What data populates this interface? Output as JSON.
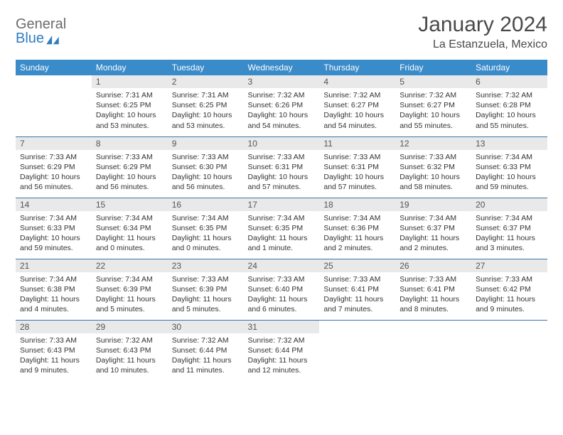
{
  "brand": {
    "line1": "General",
    "line2": "Blue"
  },
  "title": "January 2024",
  "location": "La Estanzuela, Mexico",
  "colors": {
    "header_bg": "#3a8bc9",
    "header_text": "#ffffff",
    "daynum_bg": "#e9e9e9",
    "row_border": "#3a75a8",
    "brand_blue": "#2f7ec0",
    "text": "#333333"
  },
  "weekdays": [
    "Sunday",
    "Monday",
    "Tuesday",
    "Wednesday",
    "Thursday",
    "Friday",
    "Saturday"
  ],
  "weeks": [
    [
      {
        "n": "",
        "sr": "",
        "ss": "",
        "dl": ""
      },
      {
        "n": "1",
        "sr": "7:31 AM",
        "ss": "6:25 PM",
        "dl": "10 hours and 53 minutes."
      },
      {
        "n": "2",
        "sr": "7:31 AM",
        "ss": "6:25 PM",
        "dl": "10 hours and 53 minutes."
      },
      {
        "n": "3",
        "sr": "7:32 AM",
        "ss": "6:26 PM",
        "dl": "10 hours and 54 minutes."
      },
      {
        "n": "4",
        "sr": "7:32 AM",
        "ss": "6:27 PM",
        "dl": "10 hours and 54 minutes."
      },
      {
        "n": "5",
        "sr": "7:32 AM",
        "ss": "6:27 PM",
        "dl": "10 hours and 55 minutes."
      },
      {
        "n": "6",
        "sr": "7:32 AM",
        "ss": "6:28 PM",
        "dl": "10 hours and 55 minutes."
      }
    ],
    [
      {
        "n": "7",
        "sr": "7:33 AM",
        "ss": "6:29 PM",
        "dl": "10 hours and 56 minutes."
      },
      {
        "n": "8",
        "sr": "7:33 AM",
        "ss": "6:29 PM",
        "dl": "10 hours and 56 minutes."
      },
      {
        "n": "9",
        "sr": "7:33 AM",
        "ss": "6:30 PM",
        "dl": "10 hours and 56 minutes."
      },
      {
        "n": "10",
        "sr": "7:33 AM",
        "ss": "6:31 PM",
        "dl": "10 hours and 57 minutes."
      },
      {
        "n": "11",
        "sr": "7:33 AM",
        "ss": "6:31 PM",
        "dl": "10 hours and 57 minutes."
      },
      {
        "n": "12",
        "sr": "7:33 AM",
        "ss": "6:32 PM",
        "dl": "10 hours and 58 minutes."
      },
      {
        "n": "13",
        "sr": "7:34 AM",
        "ss": "6:33 PM",
        "dl": "10 hours and 59 minutes."
      }
    ],
    [
      {
        "n": "14",
        "sr": "7:34 AM",
        "ss": "6:33 PM",
        "dl": "10 hours and 59 minutes."
      },
      {
        "n": "15",
        "sr": "7:34 AM",
        "ss": "6:34 PM",
        "dl": "11 hours and 0 minutes."
      },
      {
        "n": "16",
        "sr": "7:34 AM",
        "ss": "6:35 PM",
        "dl": "11 hours and 0 minutes."
      },
      {
        "n": "17",
        "sr": "7:34 AM",
        "ss": "6:35 PM",
        "dl": "11 hours and 1 minute."
      },
      {
        "n": "18",
        "sr": "7:34 AM",
        "ss": "6:36 PM",
        "dl": "11 hours and 2 minutes."
      },
      {
        "n": "19",
        "sr": "7:34 AM",
        "ss": "6:37 PM",
        "dl": "11 hours and 2 minutes."
      },
      {
        "n": "20",
        "sr": "7:34 AM",
        "ss": "6:37 PM",
        "dl": "11 hours and 3 minutes."
      }
    ],
    [
      {
        "n": "21",
        "sr": "7:34 AM",
        "ss": "6:38 PM",
        "dl": "11 hours and 4 minutes."
      },
      {
        "n": "22",
        "sr": "7:34 AM",
        "ss": "6:39 PM",
        "dl": "11 hours and 5 minutes."
      },
      {
        "n": "23",
        "sr": "7:33 AM",
        "ss": "6:39 PM",
        "dl": "11 hours and 5 minutes."
      },
      {
        "n": "24",
        "sr": "7:33 AM",
        "ss": "6:40 PM",
        "dl": "11 hours and 6 minutes."
      },
      {
        "n": "25",
        "sr": "7:33 AM",
        "ss": "6:41 PM",
        "dl": "11 hours and 7 minutes."
      },
      {
        "n": "26",
        "sr": "7:33 AM",
        "ss": "6:41 PM",
        "dl": "11 hours and 8 minutes."
      },
      {
        "n": "27",
        "sr": "7:33 AM",
        "ss": "6:42 PM",
        "dl": "11 hours and 9 minutes."
      }
    ],
    [
      {
        "n": "28",
        "sr": "7:33 AM",
        "ss": "6:43 PM",
        "dl": "11 hours and 9 minutes."
      },
      {
        "n": "29",
        "sr": "7:32 AM",
        "ss": "6:43 PM",
        "dl": "11 hours and 10 minutes."
      },
      {
        "n": "30",
        "sr": "7:32 AM",
        "ss": "6:44 PM",
        "dl": "11 hours and 11 minutes."
      },
      {
        "n": "31",
        "sr": "7:32 AM",
        "ss": "6:44 PM",
        "dl": "11 hours and 12 minutes."
      },
      {
        "n": "",
        "sr": "",
        "ss": "",
        "dl": ""
      },
      {
        "n": "",
        "sr": "",
        "ss": "",
        "dl": ""
      },
      {
        "n": "",
        "sr": "",
        "ss": "",
        "dl": ""
      }
    ]
  ],
  "labels": {
    "sunrise": "Sunrise: ",
    "sunset": "Sunset: ",
    "daylight": "Daylight: "
  }
}
